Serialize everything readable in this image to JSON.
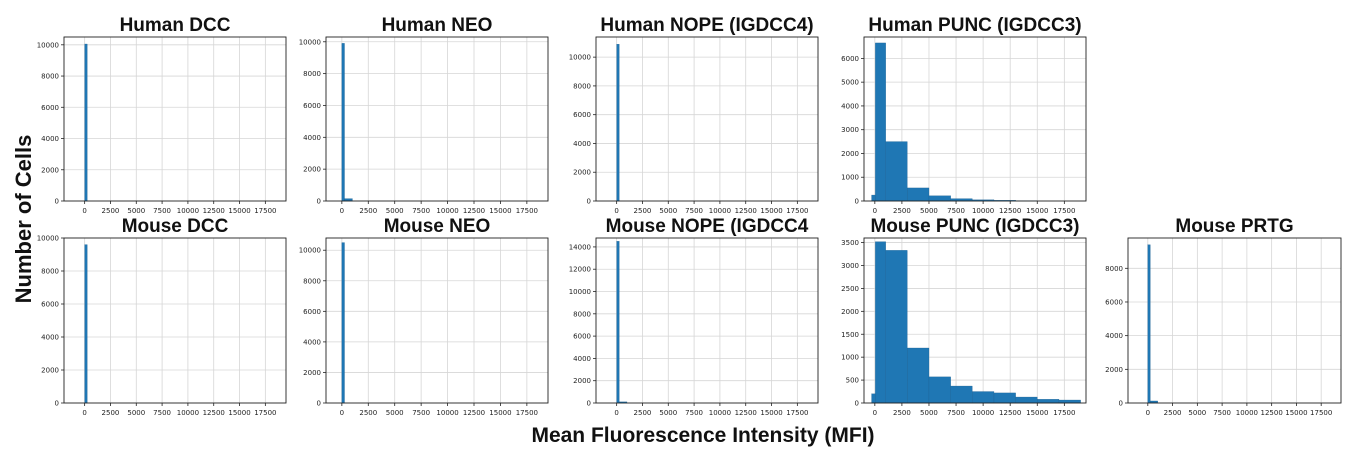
{
  "figure": {
    "ylabel": "Number of Cells",
    "xlabel": "Mean Fluorescence Intensity (MFI)"
  },
  "style": {
    "bar_color": "#1f77b4",
    "bar_edge": "#1b5e8f",
    "grid_color": "#d6d6d6",
    "frame_color": "#222222"
  },
  "chart_data": [
    {
      "type": "bar",
      "title": "Human DCC",
      "grid": true,
      "xlim": [
        -2000,
        19500
      ],
      "ylim": [
        0,
        10500
      ],
      "xticks": [
        0,
        2500,
        5000,
        7500,
        10000,
        12500,
        15000,
        17500
      ],
      "yticks": [
        0,
        2000,
        4000,
        6000,
        8000,
        10000
      ],
      "bins": [
        [
          0,
          250,
          10050
        ]
      ]
    },
    {
      "type": "bar",
      "title": "Human NEO",
      "grid": true,
      "xlim": [
        -1500,
        19500
      ],
      "ylim": [
        0,
        10300
      ],
      "xticks": [
        0,
        2500,
        5000,
        7500,
        10000,
        12500,
        15000,
        17500
      ],
      "yticks": [
        0,
        2000,
        4000,
        6000,
        8000,
        10000
      ],
      "bins": [
        [
          0,
          250,
          9900
        ],
        [
          250,
          1000,
          150
        ]
      ]
    },
    {
      "type": "bar",
      "title": "Human NOPE (IGDCC4)",
      "grid": true,
      "xlim": [
        -2000,
        19500
      ],
      "ylim": [
        0,
        11400
      ],
      "xticks": [
        0,
        2500,
        5000,
        7500,
        10000,
        12500,
        15000,
        17500
      ],
      "yticks": [
        0,
        2000,
        4000,
        6000,
        8000,
        10000
      ],
      "bins": [
        [
          0,
          250,
          10900
        ]
      ]
    },
    {
      "type": "bar",
      "title": "Human PUNC (IGDCC3)",
      "grid": true,
      "xlim": [
        -1000,
        19500
      ],
      "ylim": [
        0,
        6900
      ],
      "xticks": [
        0,
        2500,
        5000,
        7500,
        10000,
        12500,
        15000,
        17500
      ],
      "yticks": [
        0,
        1000,
        2000,
        3000,
        4000,
        5000,
        6000
      ],
      "bins": [
        [
          -300,
          50,
          250
        ],
        [
          50,
          1000,
          6650
        ],
        [
          1000,
          3000,
          2500
        ],
        [
          3000,
          5000,
          550
        ],
        [
          5000,
          7000,
          220
        ],
        [
          7000,
          9000,
          100
        ],
        [
          9000,
          11000,
          50
        ],
        [
          11000,
          13000,
          30
        ],
        [
          13000,
          15000,
          15
        ]
      ]
    },
    {
      "type": "bar",
      "title": "Mouse DCC",
      "grid": true,
      "xlim": [
        -2000,
        19500
      ],
      "ylim": [
        0,
        10000
      ],
      "xticks": [
        0,
        2500,
        5000,
        7500,
        10000,
        12500,
        15000,
        17500
      ],
      "yticks": [
        0,
        2000,
        4000,
        6000,
        8000,
        10000
      ],
      "bins": [
        [
          0,
          250,
          9600
        ]
      ]
    },
    {
      "type": "bar",
      "title": "Mouse NEO",
      "grid": true,
      "xlim": [
        -1500,
        19500
      ],
      "ylim": [
        0,
        10800
      ],
      "xticks": [
        0,
        2500,
        5000,
        7500,
        10000,
        12500,
        15000,
        17500
      ],
      "yticks": [
        0,
        2000,
        4000,
        6000,
        8000,
        10000
      ],
      "bins": [
        [
          0,
          250,
          10500
        ]
      ]
    },
    {
      "type": "bar",
      "title": "Mouse NOPE (IGDCC4",
      "grid": true,
      "xlim": [
        -2000,
        19500
      ],
      "ylim": [
        0,
        14800
      ],
      "xticks": [
        0,
        2500,
        5000,
        7500,
        10000,
        12500,
        15000,
        17500
      ],
      "yticks": [
        0,
        2000,
        4000,
        6000,
        8000,
        10000,
        12000,
        14000
      ],
      "bins": [
        [
          0,
          250,
          14500
        ],
        [
          250,
          1000,
          100
        ]
      ]
    },
    {
      "type": "bar",
      "title": "Mouse PUNC (IGDCC3)",
      "grid": true,
      "xlim": [
        -1000,
        19500
      ],
      "ylim": [
        0,
        3600
      ],
      "xticks": [
        0,
        2500,
        5000,
        7500,
        10000,
        12500,
        15000,
        17500
      ],
      "yticks": [
        0,
        500,
        1000,
        1500,
        2000,
        2500,
        3000,
        3500
      ],
      "bins": [
        [
          -300,
          50,
          200
        ],
        [
          50,
          1000,
          3520
        ],
        [
          1000,
          3000,
          3330
        ],
        [
          3000,
          5000,
          1200
        ],
        [
          5000,
          7000,
          570
        ],
        [
          7000,
          9000,
          370
        ],
        [
          9000,
          11000,
          250
        ],
        [
          11000,
          13000,
          220
        ],
        [
          13000,
          15000,
          130
        ],
        [
          15000,
          17000,
          80
        ],
        [
          17000,
          19000,
          65
        ]
      ]
    },
    {
      "type": "bar",
      "title": "Mouse PRTG",
      "grid": true,
      "xlim": [
        -2000,
        19500
      ],
      "ylim": [
        0,
        9800
      ],
      "xticks": [
        0,
        2500,
        5000,
        7500,
        10000,
        12500,
        15000,
        17500
      ],
      "yticks": [
        0,
        2000,
        4000,
        6000,
        8000
      ],
      "bins": [
        [
          0,
          250,
          9400
        ],
        [
          250,
          1000,
          120
        ]
      ]
    }
  ]
}
